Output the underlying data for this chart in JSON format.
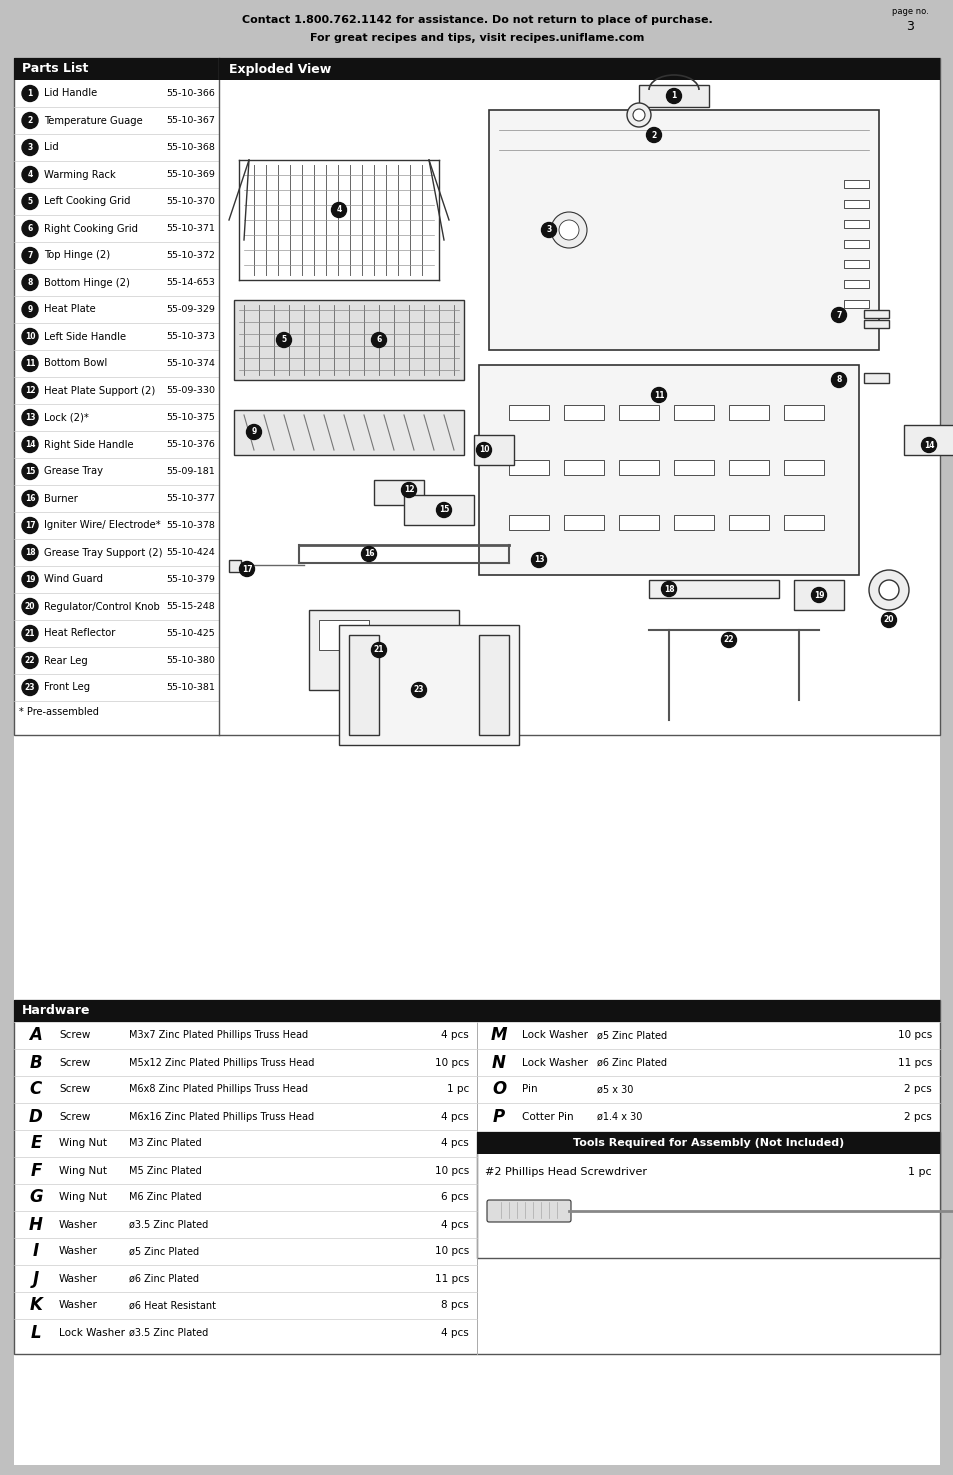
{
  "page_bg": "#c0c0c0",
  "content_bg": "#ffffff",
  "header_text1": "Contact 1.800.762.1142 for assistance. Do not return to place of purchase.",
  "header_text2": "For great recipes and tips, visit recipes.uniflame.com",
  "page_no_label": "page no.",
  "page_no": "3",
  "parts_list_title": "Parts List",
  "parts_list_title_bg": "#111111",
  "parts_list_title_color": "#ffffff",
  "exploded_view_title": "Exploded View",
  "exploded_view_title_bg": "#111111",
  "exploded_view_title_color": "#ffffff",
  "parts": [
    {
      "num": "1",
      "name": "Lid Handle",
      "part_no": "55-10-366"
    },
    {
      "num": "2",
      "name": "Temperature Guage",
      "part_no": "55-10-367"
    },
    {
      "num": "3",
      "name": "Lid",
      "part_no": "55-10-368"
    },
    {
      "num": "4",
      "name": "Warming Rack",
      "part_no": "55-10-369"
    },
    {
      "num": "5",
      "name": "Left Cooking Grid",
      "part_no": "55-10-370"
    },
    {
      "num": "6",
      "name": "Right Cooking Grid",
      "part_no": "55-10-371"
    },
    {
      "num": "7",
      "name": "Top Hinge (2)",
      "part_no": "55-10-372"
    },
    {
      "num": "8",
      "name": "Bottom Hinge (2)",
      "part_no": "55-14-653"
    },
    {
      "num": "9",
      "name": "Heat Plate",
      "part_no": "55-09-329"
    },
    {
      "num": "10",
      "name": "Left Side Handle",
      "part_no": "55-10-373"
    },
    {
      "num": "11",
      "name": "Bottom Bowl",
      "part_no": "55-10-374"
    },
    {
      "num": "12",
      "name": "Heat Plate Support (2)",
      "part_no": "55-09-330"
    },
    {
      "num": "13",
      "name": "Lock (2)*",
      "part_no": "55-10-375"
    },
    {
      "num": "14",
      "name": "Right Side Handle",
      "part_no": "55-10-376"
    },
    {
      "num": "15",
      "name": "Grease Tray",
      "part_no": "55-09-181"
    },
    {
      "num": "16",
      "name": "Burner",
      "part_no": "55-10-377"
    },
    {
      "num": "17",
      "name": "Igniter Wire/ Electrode*",
      "part_no": "55-10-378"
    },
    {
      "num": "18",
      "name": "Grease Tray Support (2)",
      "part_no": "55-10-424"
    },
    {
      "num": "19",
      "name": "Wind Guard",
      "part_no": "55-10-379"
    },
    {
      "num": "20",
      "name": "Regulator/Control Knob",
      "part_no": "55-15-248"
    },
    {
      "num": "21",
      "name": "Heat Reflector",
      "part_no": "55-10-425"
    },
    {
      "num": "22",
      "name": "Rear Leg",
      "part_no": "55-10-380"
    },
    {
      "num": "23",
      "name": "Front Leg",
      "part_no": "55-10-381"
    }
  ],
  "pre_assembled_note": "* Pre-assembled",
  "hardware_title": "Hardware",
  "hardware_title_bg": "#111111",
  "hardware_title_color": "#ffffff",
  "hardware_left": [
    {
      "letter": "A",
      "type": "Screw",
      "desc": "M3x7 Zinc Plated Phillips Truss Head",
      "qty": "4 pcs"
    },
    {
      "letter": "B",
      "type": "Screw",
      "desc": "M5x12 Zinc Plated Phillips Truss Head",
      "qty": "10 pcs"
    },
    {
      "letter": "C",
      "type": "Screw",
      "desc": "M6x8 Zinc Plated Phillips Truss Head",
      "qty": "1 pc"
    },
    {
      "letter": "D",
      "type": "Screw",
      "desc": "M6x16 Zinc Plated Phillips Truss Head",
      "qty": "4 pcs"
    },
    {
      "letter": "E",
      "type": "Wing Nut",
      "desc": "M3 Zinc Plated",
      "qty": "4 pcs"
    },
    {
      "letter": "F",
      "type": "Wing Nut",
      "desc": "M5 Zinc Plated",
      "qty": "10 pcs"
    },
    {
      "letter": "G",
      "type": "Wing Nut",
      "desc": "M6 Zinc Plated",
      "qty": "6 pcs"
    },
    {
      "letter": "H",
      "type": "Washer",
      "desc": "ø3.5 Zinc Plated",
      "qty": "4 pcs"
    },
    {
      "letter": "I",
      "type": "Washer",
      "desc": "ø5 Zinc Plated",
      "qty": "10 pcs"
    },
    {
      "letter": "J",
      "type": "Washer",
      "desc": "ø6 Zinc Plated",
      "qty": "11 pcs"
    },
    {
      "letter": "K",
      "type": "Washer",
      "desc": "ø6 Heat Resistant",
      "qty": "8 pcs"
    },
    {
      "letter": "L",
      "type": "Lock Washer",
      "desc": "ø3.5 Zinc Plated",
      "qty": "4 pcs"
    }
  ],
  "hardware_right": [
    {
      "letter": "M",
      "type": "Lock Washer",
      "desc": "ø5 Zinc Plated",
      "qty": "10 pcs"
    },
    {
      "letter": "N",
      "type": "Lock Washer",
      "desc": "ø6 Zinc Plated",
      "qty": "11 pcs"
    },
    {
      "letter": "O",
      "type": "Pin",
      "desc": "ø5 x 30",
      "qty": "2 pcs"
    },
    {
      "letter": "P",
      "type": "Cotter Pin",
      "desc": "ø1.4 x 30",
      "qty": "2 pcs"
    }
  ],
  "tools_title": "Tools Required for Assembly (Not Included)",
  "tools_title_bg": "#111111",
  "tools_title_color": "#ffffff",
  "tools": [
    {
      "name": "#2 Phillips Head Screwdriver",
      "qty": "1 pc"
    }
  ]
}
